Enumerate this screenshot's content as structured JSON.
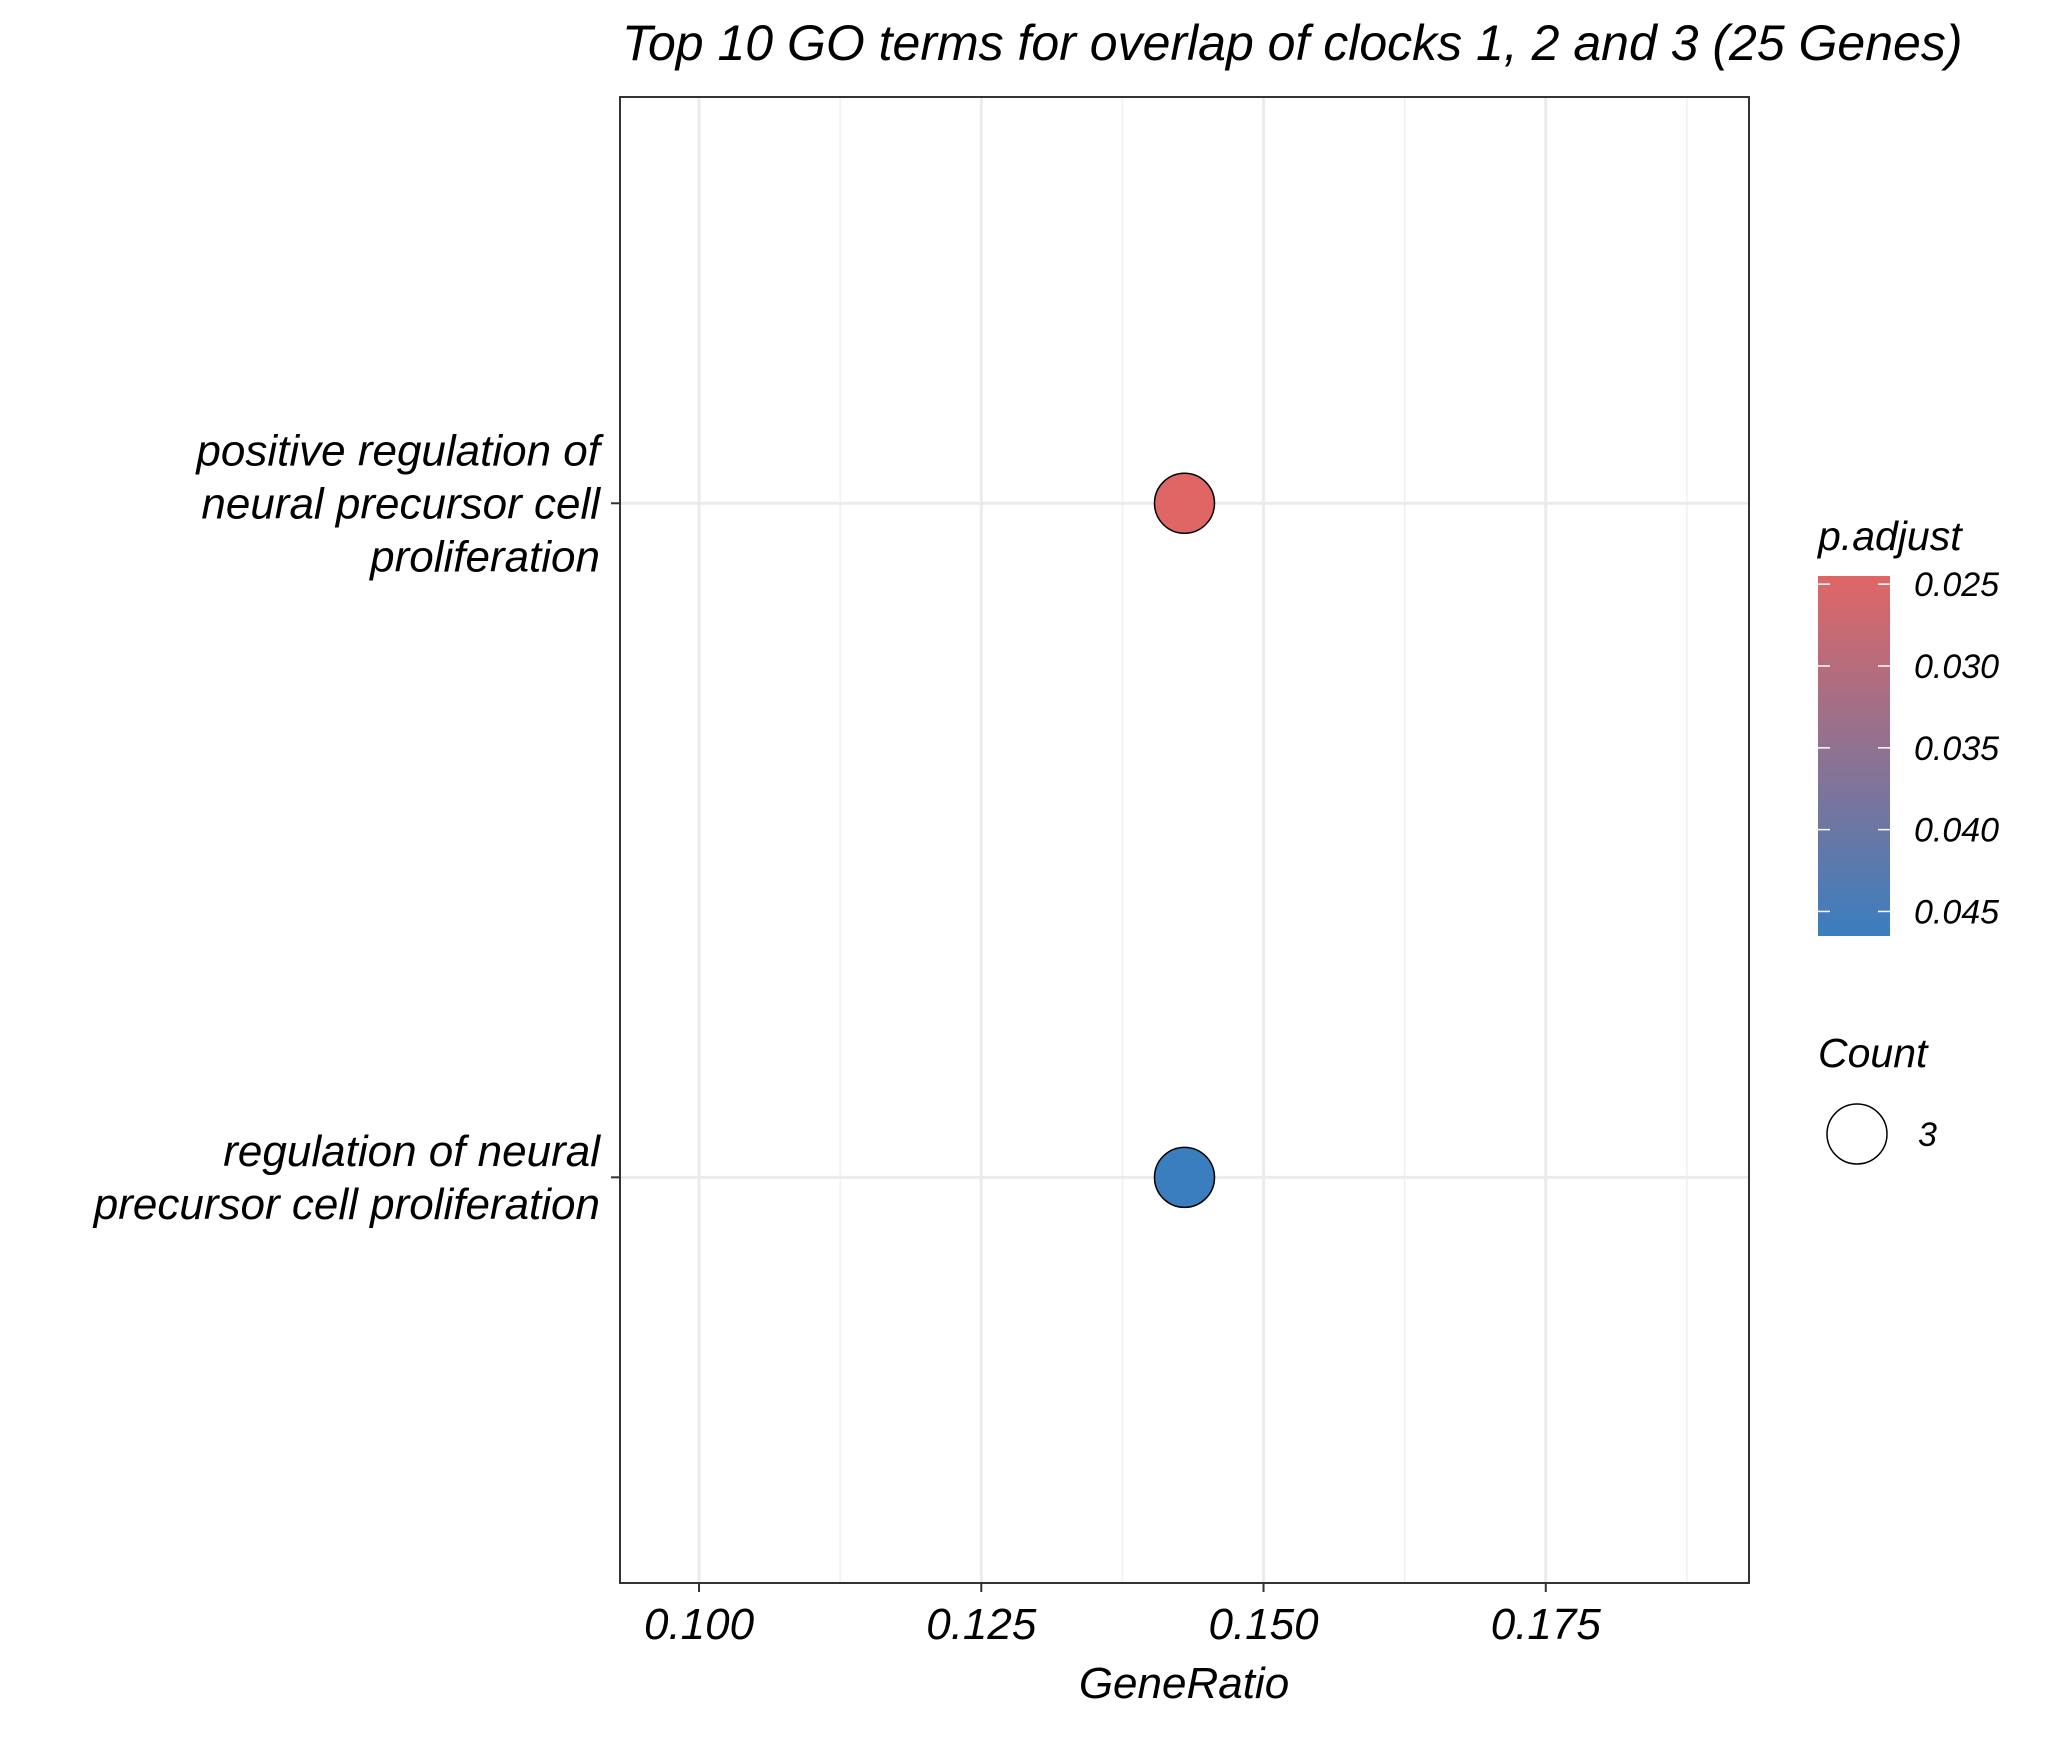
{
  "chart_data": {
    "type": "scatter",
    "title": "Top 10 GO terms for overlap of clocks 1, 2 and 3 (25 Genes)",
    "xlabel": "GeneRatio",
    "ylabel": "",
    "xlim": [
      0.093,
      0.193
    ],
    "x_ticks": [
      "0.100",
      "0.125",
      "0.150",
      "0.175"
    ],
    "grid": true,
    "categories": [
      "positive regulation of neural precursor cell proliferation",
      "regulation of neural precursor cell proliferation"
    ],
    "category_label_lines": [
      [
        "positive regulation of",
        "neural precursor cell",
        "proliferation"
      ],
      [
        "regulation of neural",
        "precursor cell proliferation"
      ]
    ],
    "points": [
      {
        "term": "positive regulation of neural precursor cell proliferation",
        "x": 0.143,
        "p_adjust": 0.0245,
        "count": 3
      },
      {
        "term": "regulation of neural precursor cell proliferation",
        "x": 0.143,
        "p_adjust": 0.0465,
        "count": 3
      }
    ],
    "legend": {
      "placement": "right",
      "color": {
        "title": "p.adjust",
        "ticks": [
          "0.025",
          "0.030",
          "0.035",
          "0.040",
          "0.045"
        ],
        "range": [
          0.0245,
          0.0465
        ],
        "low_color": "#e06666",
        "high_color": "#3a7ebf"
      },
      "size": {
        "title": "Count",
        "entries": [
          "3"
        ]
      }
    }
  }
}
